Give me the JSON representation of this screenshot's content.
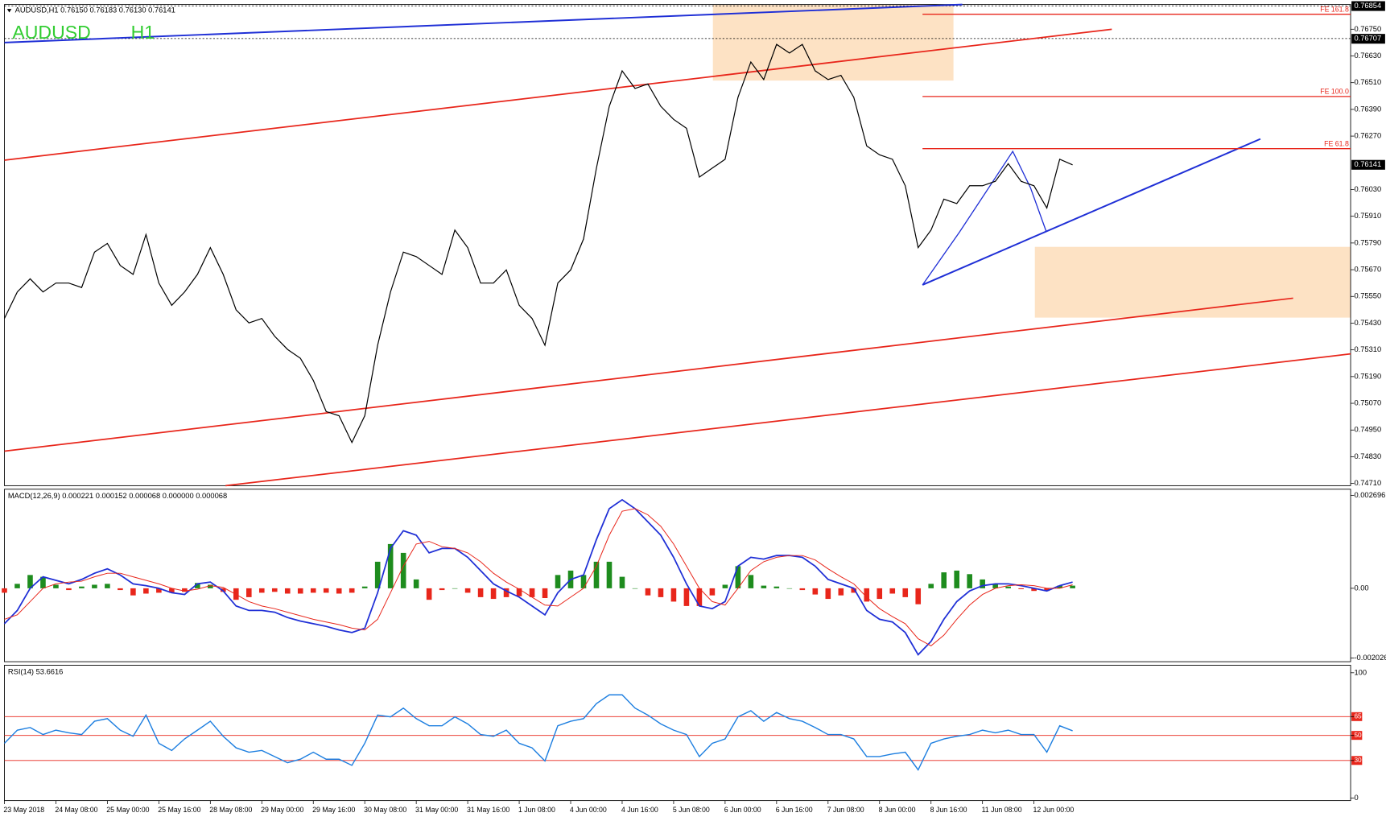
{
  "chart_data": [
    {
      "type": "line",
      "title": "AUDUSD,H1  0.76150 0.76183 0.76130 0.76141",
      "symbol": "AUDUSD",
      "timeframe": "H1",
      "annotations": [
        "FE 161.8",
        "FE 100.0",
        "FE 61.8"
      ],
      "color": "#000000",
      "ylim": [
        0.747,
        0.76861
      ],
      "yticks": [
        {
          "value": 0.7675,
          "label": "0.76750"
        },
        {
          "value": 0.7663,
          "label": "0.76630"
        },
        {
          "value": 0.7651,
          "label": "0.76510"
        },
        {
          "value": 0.7639,
          "label": "0.76390"
        },
        {
          "value": 0.7627,
          "label": "0.76270"
        },
        {
          "value": 0.7603,
          "label": "0.76030"
        },
        {
          "value": 0.7591,
          "label": "0.75910"
        },
        {
          "value": 0.7579,
          "label": "0.75790"
        },
        {
          "value": 0.7567,
          "label": "0.75670"
        },
        {
          "value": 0.7555,
          "label": "0.75550"
        },
        {
          "value": 0.7543,
          "label": "0.75430"
        },
        {
          "value": 0.7531,
          "label": "0.75310"
        },
        {
          "value": 0.7519,
          "label": "0.75190"
        },
        {
          "value": 0.7507,
          "label": "0.75070"
        },
        {
          "value": 0.7495,
          "label": "0.74950"
        },
        {
          "value": 0.7483,
          "label": "0.74830"
        },
        {
          "value": 0.7471,
          "label": "0.74710"
        }
      ],
      "price_labels": [
        0.76854,
        0.76707,
        0.76141
      ],
      "categories": [
        "23 May 2018",
        null,
        null,
        null,
        "24 May 08:00",
        null,
        null,
        null,
        "25 May 00:00",
        null,
        null,
        null,
        "25 May 16:00",
        null,
        null,
        null,
        "28 May 08:00",
        null,
        null,
        null,
        "29 May 00:00",
        null,
        null,
        null,
        "29 May 16:00",
        null,
        null,
        null,
        "30 May 08:00",
        null,
        null,
        null,
        "31 May 00:00",
        null,
        null,
        null,
        "31 May 16:00",
        null,
        null,
        null,
        "1 Jun 08:00",
        null,
        null,
        null,
        "4 Jun 00:00",
        null,
        null,
        null,
        "4 Jun 16:00",
        null,
        null,
        null,
        "5 Jun 08:00",
        null,
        null,
        null,
        "6 Jun 00:00",
        null,
        null,
        null,
        "6 Jun 16:00",
        null,
        null,
        null,
        "7 Jun 08:00",
        null,
        null,
        null,
        "8 Jun 00:00",
        null,
        null,
        null,
        "8 Jun 16:00",
        null,
        null,
        null,
        "11 Jun 08:00",
        null,
        null,
        null,
        "12 Jun 00:00",
        null,
        null,
        null
      ],
      "values": [
        0.75451,
        0.7557,
        0.75629,
        0.7557,
        0.7561,
        0.7561,
        0.7559,
        0.75749,
        0.75788,
        0.75689,
        0.75649,
        0.75828,
        0.7561,
        0.7551,
        0.7557,
        0.75649,
        0.75769,
        0.75649,
        0.7549,
        0.75431,
        0.75451,
        0.75371,
        0.75312,
        0.75272,
        0.75173,
        0.75033,
        0.75014,
        0.74894,
        0.75014,
        0.75331,
        0.7557,
        0.75749,
        0.75729,
        0.75689,
        0.75649,
        0.75848,
        0.75769,
        0.7561,
        0.7561,
        0.75669,
        0.7551,
        0.75451,
        0.75331,
        0.7561,
        0.75669,
        0.75808,
        0.76126,
        0.76404,
        0.76563,
        0.76484,
        0.76504,
        0.76404,
        0.76345,
        0.76305,
        0.76086,
        0.76126,
        0.76166,
        0.76444,
        0.76603,
        0.76524,
        0.76682,
        0.76643,
        0.76682,
        0.76563,
        0.76524,
        0.76543,
        0.76444,
        0.76226,
        0.76186,
        0.76166,
        0.76047,
        0.75769,
        0.75848,
        0.75987,
        0.75967,
        0.76047,
        0.76047,
        0.76067,
        0.76146,
        0.76067,
        0.76047,
        0.75947,
        0.76166,
        0.76141
      ]
    },
    {
      "type": "macd",
      "title": "MACD(12,26,9) 0.000221 0.000152 0.000068 0.000000 0.000068",
      "ylim": [
        -0.002131,
        0.002876
      ],
      "yticks": [
        0.002696,
        {
          "value": 0,
          "label": "0.00"
        },
        -0.002026
      ],
      "histogram": {
        "positive_color": "#1e8c1e",
        "negative_color": "#e8261b",
        "values": [
          -0.000129,
          0.000129,
          0.000386,
          0.000334,
          0.000103,
          -5.1e-05,
          5.1e-05,
          0.000103,
          0.000129,
          -5.1e-05,
          -0.000206,
          -0.000154,
          -0.000129,
          -0.000129,
          -0.000103,
          0.000154,
          0.000103,
          -0.000103,
          -0.000334,
          -0.000257,
          -0.000129,
          -0.000103,
          -0.000154,
          -0.000154,
          -0.000129,
          -0.000129,
          -0.000154,
          -0.000129,
          5.1e-05,
          0.000771,
          0.001285,
          0.001028,
          0.000257,
          -0.000334,
          -5.1e-05,
          0,
          -0.000129,
          -0.000257,
          -0.000308,
          -0.000257,
          -0.000231,
          -0.000257,
          -0.000283,
          0.000386,
          0.000514,
          0.000386,
          0.000771,
          0.000771,
          0.000334,
          0,
          -0.000206,
          -0.000257,
          -0.000386,
          -0.000514,
          -0.000514,
          -0.000206,
          0.000103,
          0.000643,
          0.000386,
          7.7e-05,
          5.1e-05,
          0,
          -5.1e-05,
          -0.00018,
          -0.000308,
          -0.000206,
          -0.000129,
          -0.000386,
          -0.000308,
          -0.000154,
          -0.000257,
          -0.000463,
          0.000129,
          0.000463,
          0.000514,
          0.000411,
          0.000257,
          0.000129,
          5.1e-05,
          -2.6e-05,
          -7.7e-05,
          -7.7e-05,
          7.7e-05,
          7.7e-05
        ]
      },
      "lines": [
        {
          "color": "#1f2fd6",
          "values": [
            -0.001028,
            -0.000643,
            0,
            0.000334,
            0.000231,
            0.000129,
            0.000257,
            0.000437,
            0.000565,
            0.000386,
            0.000129,
            7.7e-05,
            0,
            -0.000129,
            -0.00018,
            0.000129,
            0.00018,
            -7.7e-05,
            -0.000514,
            -0.000643,
            -0.000643,
            -0.000694,
            -0.000848,
            -0.000951,
            -0.001028,
            -0.001105,
            -0.001208,
            -0.001285,
            -0.001157,
            -0.000129,
            0.001157,
            0.001671,
            0.001542,
            0.001028,
            0.001157,
            0.001157,
            0.0009,
            0.000514,
            0.000129,
            -7.7e-05,
            -0.000257,
            -0.000514,
            -0.000771,
            -0.000129,
            0.000257,
            0.000386,
            0.001414,
            0.002313,
            0.00257,
            0.002313,
            0.001928,
            0.001542,
            0.0009,
            0.000129,
            -0.000514,
            -0.000591,
            -0.000386,
            0.000643,
            0.0009,
            0.000848,
            0.000951,
            0.000951,
            0.0009,
            0.000643,
            0.000257,
            0.000129,
            0,
            -0.000643,
            -0.0009,
            -0.000977,
            -0.001285,
            -0.001928,
            -0.001542,
            -0.0009,
            -0.000386,
            -7.7e-05,
            7.7e-05,
            0.000129,
            0.000129,
            7.7e-05,
            0,
            -7.7e-05,
            7.7e-05,
            0.00018
          ]
        },
        {
          "color": "#e8261b",
          "values": [
            -0.0009,
            -0.000771,
            -0.000386,
            0,
            0.000129,
            0.00018,
            0.000206,
            0.000334,
            0.000437,
            0.000437,
            0.000334,
            0.000231,
            0.000129,
            0,
            -7.7e-05,
            -2.6e-05,
            7.7e-05,
            2.6e-05,
            -0.00018,
            -0.000386,
            -0.000514,
            -0.000591,
            -0.000694,
            -0.000797,
            -0.0009,
            -0.000977,
            -0.001054,
            -0.001157,
            -0.001208,
            -0.0009,
            -0.000129,
            0.000643,
            0.001285,
            0.001362,
            0.001208,
            0.001157,
            0.001028,
            0.000771,
            0.000437,
            0.00018,
            -2.6e-05,
            -0.000257,
            -0.000488,
            -0.000514,
            -0.000257,
            0,
            0.000643,
            0.001542,
            0.002236,
            0.002313,
            0.002133,
            0.001799,
            0.001285,
            0.000643,
            0,
            -0.000386,
            -0.000488,
            0,
            0.000514,
            0.000771,
            0.0009,
            0.000951,
            0.000951,
            0.000822,
            0.000565,
            0.000334,
            0.000129,
            -0.000257,
            -0.000591,
            -0.000822,
            -0.001028,
            -0.001465,
            -0.001671,
            -0.001362,
            -0.0009,
            -0.000488,
            -0.00018,
            0,
            7.7e-05,
            0.000103,
            7.7e-05,
            0,
            0,
            0.000103
          ]
        }
      ]
    },
    {
      "type": "line",
      "title": "RSI(14) 53.6616",
      "color": "#1e7fe0",
      "ylim": [
        -2,
        106
      ],
      "yticks": [
        0,
        30,
        50,
        65,
        100
      ],
      "levels": [
        30,
        50,
        65
      ],
      "level_color": "#e8261b",
      "values": [
        43.7,
        54.2,
        56.3,
        50.7,
        54.2,
        52.1,
        50.7,
        61.3,
        63.4,
        54.2,
        49.3,
        66.2,
        43.7,
        38,
        47.2,
        54.2,
        61.3,
        49.3,
        40.1,
        36.6,
        38,
        33.1,
        28.2,
        31,
        36.6,
        31,
        31,
        26.1,
        43.7,
        66.2,
        64.8,
        71.8,
        63.4,
        57.7,
        57.7,
        64.8,
        59.2,
        50.7,
        49.3,
        54.2,
        43.7,
        40.1,
        29.6,
        57.7,
        61.3,
        63.4,
        75.4,
        82.4,
        82.4,
        71.8,
        66.2,
        59.2,
        54.2,
        50.7,
        33.1,
        43.7,
        47.2,
        64.8,
        69.7,
        61.3,
        68.3,
        63.4,
        61.3,
        56.3,
        50.7,
        50.7,
        47.2,
        33.1,
        33.1,
        35.2,
        36.6,
        22.5,
        43.7,
        47.2,
        49.3,
        50.7,
        54.2,
        52.1,
        54.2,
        50.7,
        50.7,
        36.6,
        57.7,
        53.7
      ]
    }
  ]
}
